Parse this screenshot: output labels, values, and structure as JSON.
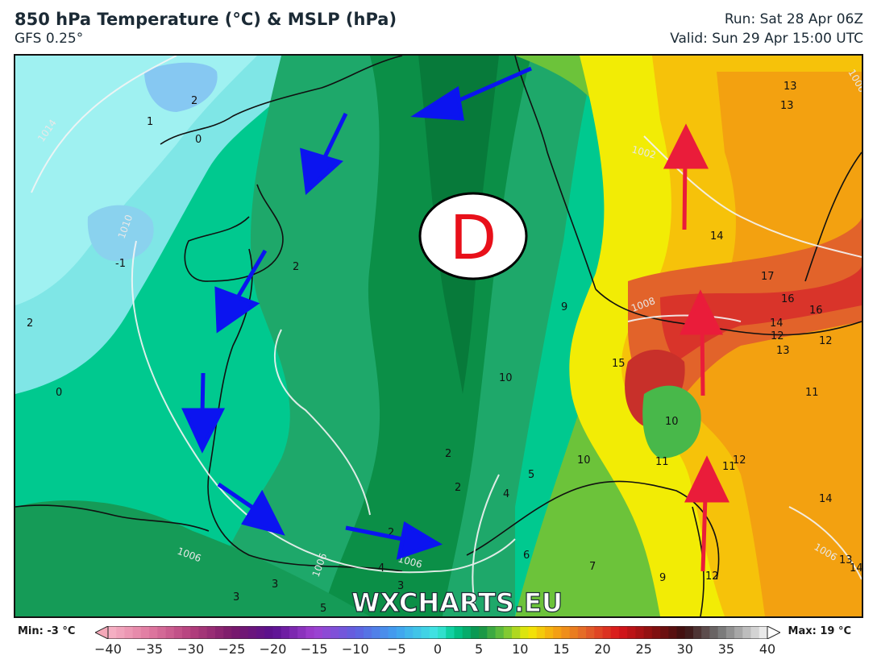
{
  "header": {
    "title": "850 hPa Temperature (°C) & MSLP (hPa)",
    "model": "GFS 0.25°",
    "run": "Run: Sat 28 Apr 06Z",
    "valid": "Valid: Sun 29 Apr 15:00 UTC"
  },
  "map": {
    "low_symbol": "D",
    "watermark": "WXCHARTS.EU",
    "colors": {
      "low_letter": "#e8101a",
      "cold_arrow": "#0b14f0",
      "warm_arrow": "#ea1c3a",
      "watermark": "#ffffff"
    },
    "temp_labels": [
      "2",
      "1",
      "0",
      "-1",
      "2",
      "2",
      "0",
      "9",
      "10",
      "15",
      "10",
      "10",
      "11",
      "11",
      "12",
      "13",
      "13",
      "14",
      "17",
      "16",
      "16",
      "14",
      "12",
      "13",
      "12",
      "11",
      "14",
      "13",
      "14",
      "12",
      "9",
      "7",
      "6",
      "5",
      "4",
      "2",
      "2",
      "2",
      "4",
      "3",
      "3",
      "5",
      "3"
    ],
    "isobar_labels": [
      "1014",
      "1010",
      "1002",
      "1008",
      "1006",
      "1006",
      "1006",
      "1006",
      "1006"
    ],
    "arrows": {
      "cold_count": 7,
      "warm_count": 3
    }
  },
  "legend": {
    "min_label": "Min: -3 °C",
    "max_label": "Max: 19 °C",
    "ticks": [
      "−40",
      "−35",
      "−30",
      "−25",
      "−20",
      "−15",
      "−10",
      "−5",
      "0",
      "5",
      "10",
      "15",
      "20",
      "25",
      "30",
      "35",
      "40"
    ],
    "scale_min": -40,
    "scale_max": 40
  }
}
